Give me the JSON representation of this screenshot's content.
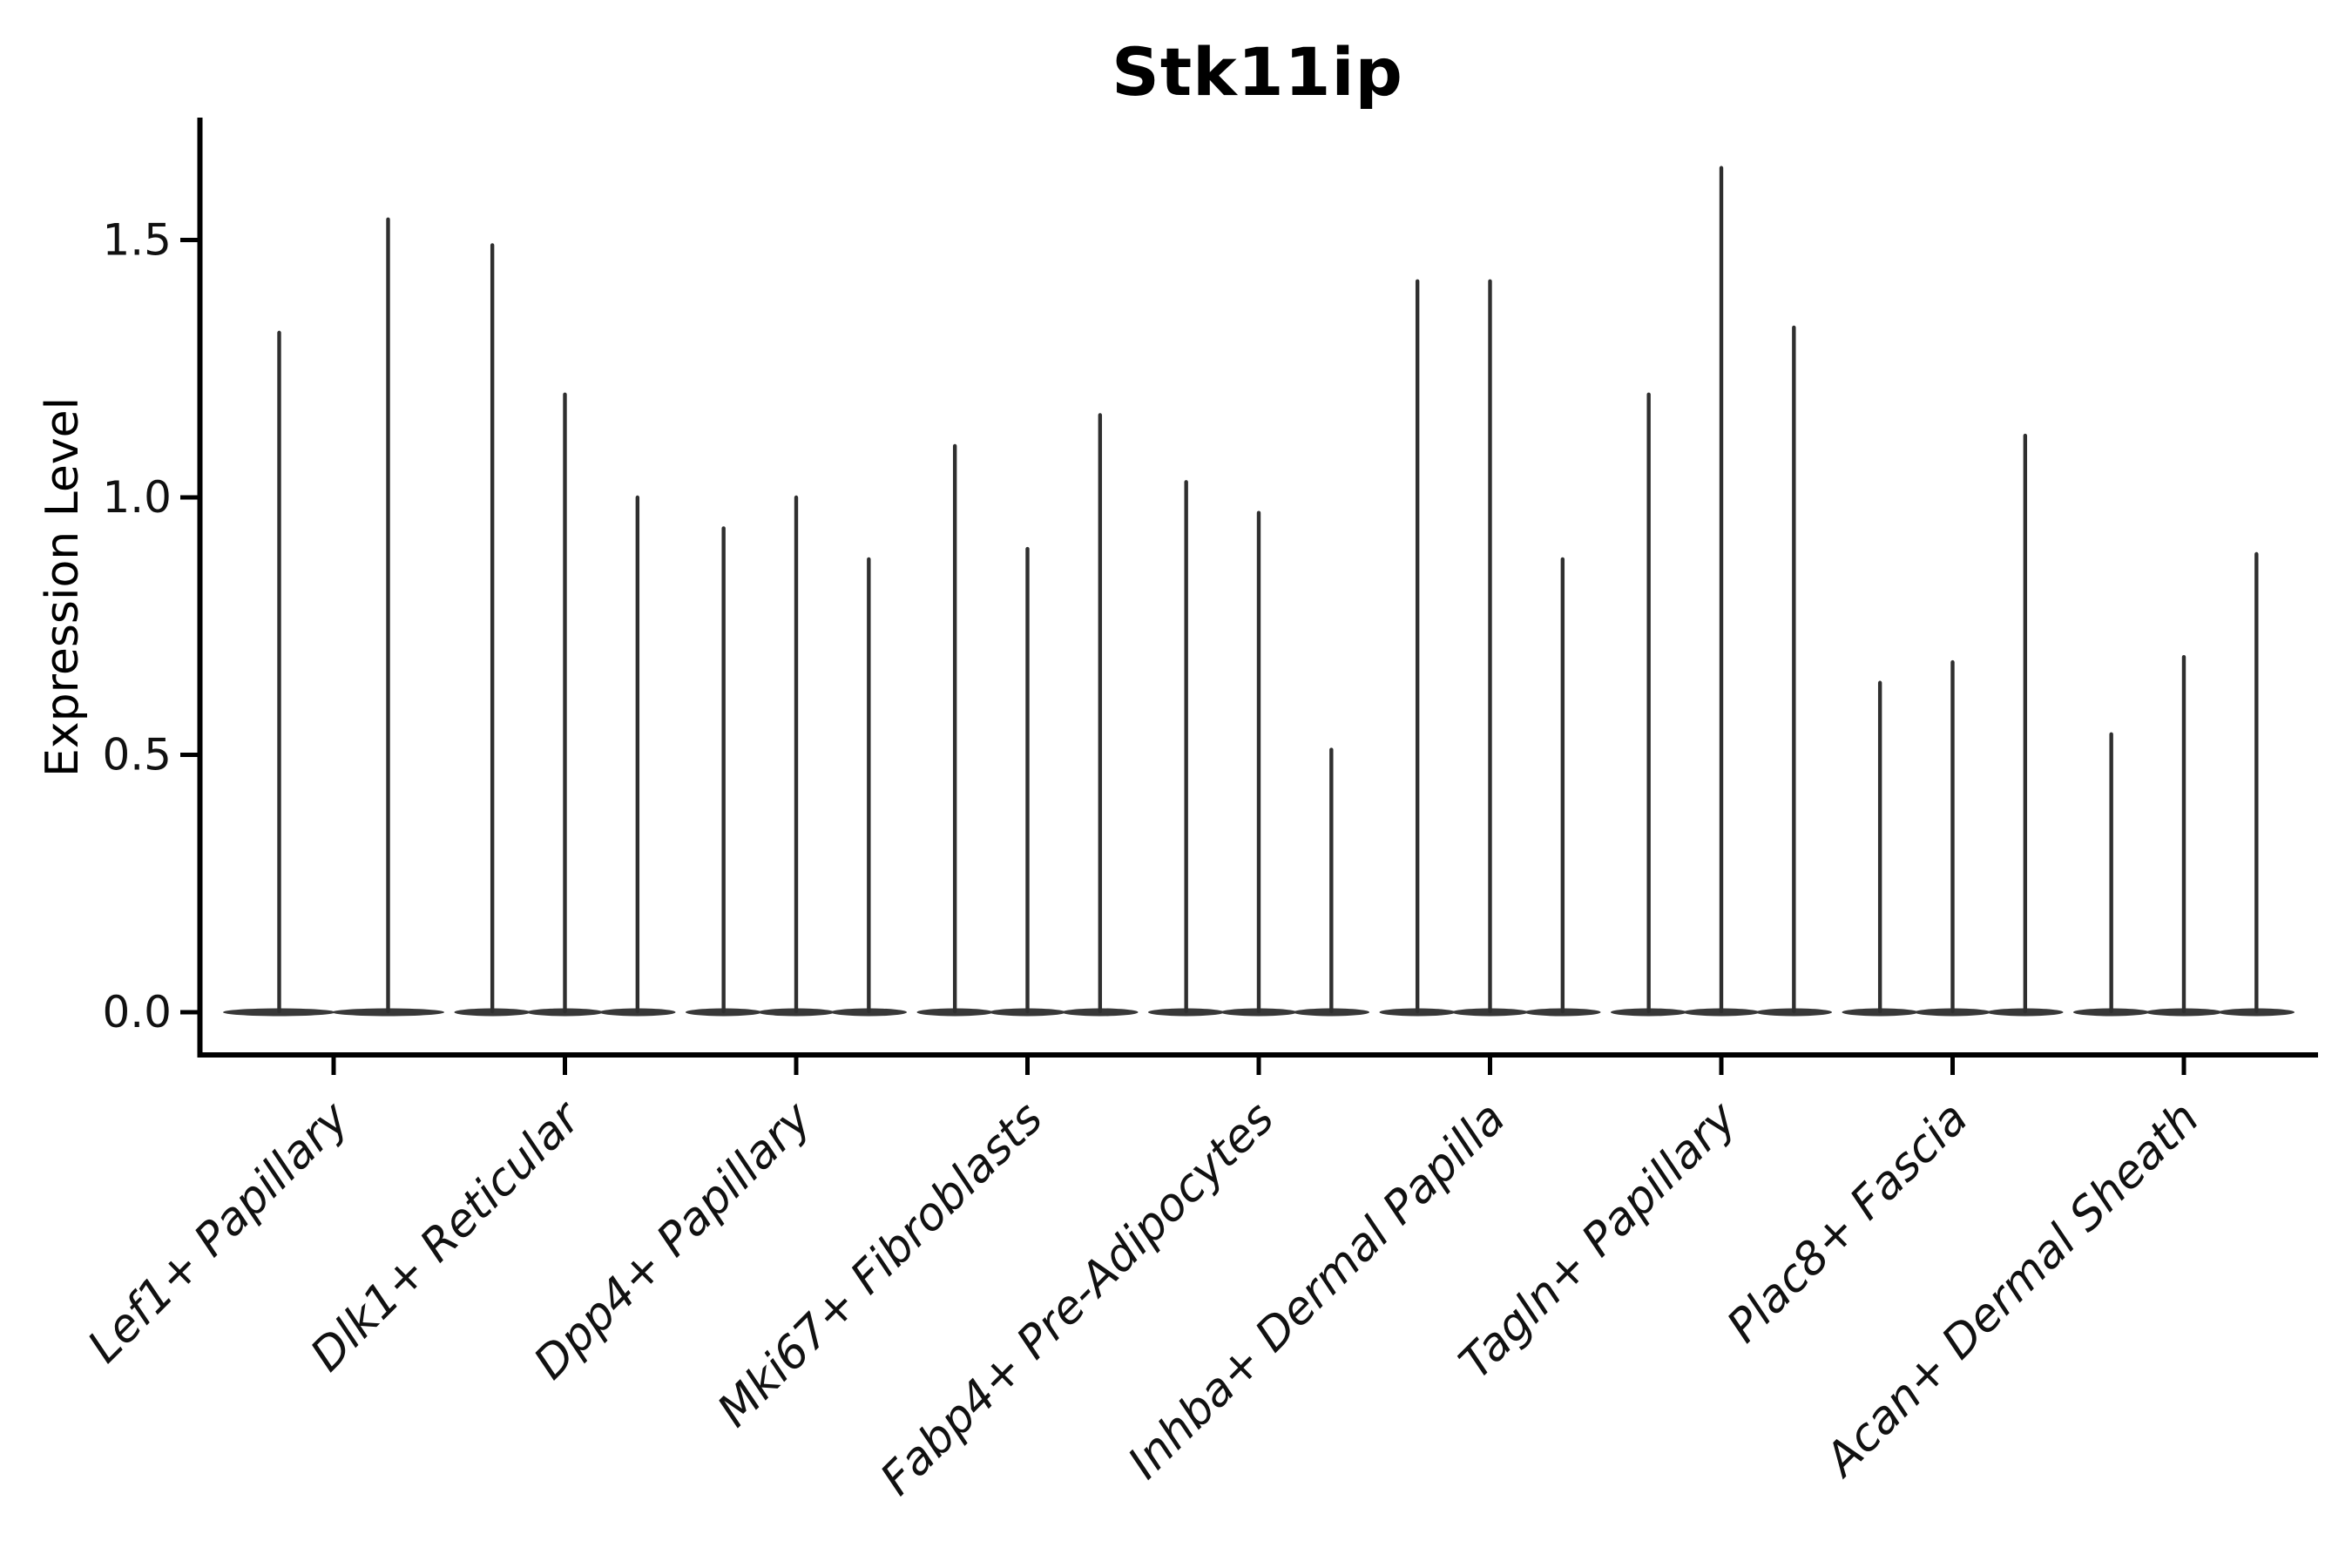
{
  "figure": {
    "background": "#ffffff"
  },
  "chart_data": {
    "type": "violin",
    "title": "Stk11ip",
    "xlabel": "",
    "ylabel": "Expression Level",
    "ytick_labels": [
      "0.0",
      "0.5",
      "1.0",
      "1.5"
    ],
    "ytick_values": [
      0.0,
      0.5,
      1.0,
      1.5
    ],
    "ylim": [
      -0.06,
      1.74
    ],
    "grid": false,
    "legend": "none",
    "categories": [
      "Lef1+ Papillary",
      "Dlk1+ Reticular",
      "Dpp4+ Papillary",
      "Mki67+ Fibroblasts",
      "Fabp4+ Pre-Adipocytes",
      "Inhba+ Dermal Papilla",
      "Tagln+ Papillary",
      "Plac8+ Fascia",
      "Acan+ Dermal Sheath"
    ],
    "groups": [
      {
        "category": "Lef1+ Papillary",
        "violin_maxima": [
          1.32,
          1.54
        ]
      },
      {
        "category": "Dlk1+ Reticular",
        "violin_maxima": [
          1.49,
          1.2,
          1.0
        ]
      },
      {
        "category": "Dpp4+ Papillary",
        "violin_maxima": [
          0.94,
          1.0,
          0.88
        ]
      },
      {
        "category": "Mki67+ Fibroblasts",
        "violin_maxima": [
          1.1,
          0.9,
          1.16
        ]
      },
      {
        "category": "Fabp4+ Pre-Adipocytes",
        "violin_maxima": [
          1.03,
          0.97,
          0.51
        ]
      },
      {
        "category": "Inhba+ Dermal Papilla",
        "violin_maxima": [
          1.42,
          1.42,
          0.88
        ]
      },
      {
        "category": "Tagln+ Papillary",
        "violin_maxima": [
          1.2,
          1.64,
          1.33
        ]
      },
      {
        "category": "Plac8+ Fascia",
        "violin_maxima": [
          0.64,
          0.68,
          1.12
        ]
      },
      {
        "category": "Acan+ Dermal Sheath",
        "violin_maxima": [
          0.54,
          0.69,
          0.89
        ]
      }
    ],
    "violin_description": "density collapsed near zero (flat blob at y=0) with thin spike up to maximum expression",
    "colors": {
      "violin_spike": "#2f2f2f",
      "violin_base_blob": "#383838",
      "axis": "#000000",
      "text": "#000000",
      "background": "#ffffff"
    }
  }
}
